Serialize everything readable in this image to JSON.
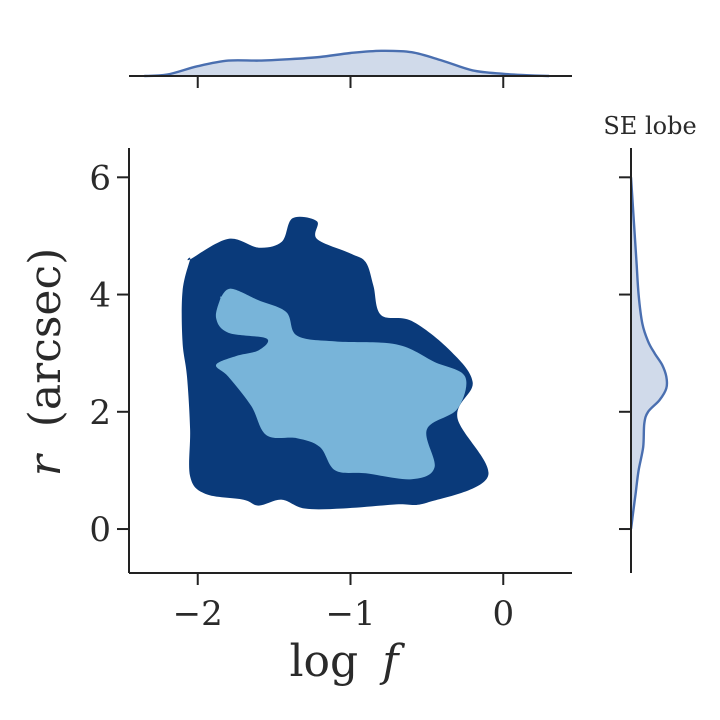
{
  "chart_data": {
    "type": "contour",
    "annotation": "SE lobe",
    "xlabel_main": "log",
    "xlabel_var": "f",
    "ylabel_var": "r",
    "ylabel_unit": "(arcsec)",
    "xlim": [
      -2.45,
      0.45
    ],
    "ylim": [
      -0.75,
      6.5
    ],
    "xticks": [
      -2,
      -1,
      0
    ],
    "xtick_labels": [
      "−2",
      "−1",
      "0"
    ],
    "yticks": [
      0,
      2,
      4,
      6
    ],
    "ytick_labels": [
      "0",
      "2",
      "4",
      "6"
    ],
    "grid": false,
    "colors": {
      "outer_contour": "#0a3a7a",
      "inner_contour": "#78b4d9",
      "marginal_line": "#4a6fb0",
      "marginal_fill": "#d0daea",
      "axis": "#222222"
    },
    "contour_levels": [
      {
        "name": "outer",
        "points": [
          [
            -2.05,
            4.6
          ],
          [
            -1.8,
            4.95
          ],
          [
            -1.6,
            4.8
          ],
          [
            -1.45,
            4.9
          ],
          [
            -1.38,
            5.3
          ],
          [
            -1.22,
            5.25
          ],
          [
            -1.22,
            4.95
          ],
          [
            -1.0,
            4.7
          ],
          [
            -0.9,
            4.55
          ],
          [
            -0.85,
            4.15
          ],
          [
            -0.8,
            3.65
          ],
          [
            -0.6,
            3.55
          ],
          [
            -0.35,
            3.05
          ],
          [
            -0.2,
            2.5
          ],
          [
            -0.3,
            1.9
          ],
          [
            -0.1,
            0.9
          ],
          [
            -0.5,
            0.45
          ],
          [
            -0.7,
            0.42
          ],
          [
            -1.05,
            0.35
          ],
          [
            -1.3,
            0.35
          ],
          [
            -1.45,
            0.5
          ],
          [
            -1.6,
            0.4
          ],
          [
            -1.7,
            0.5
          ],
          [
            -1.95,
            0.6
          ],
          [
            -2.05,
            0.9
          ],
          [
            -2.05,
            1.7
          ],
          [
            -2.07,
            2.6
          ],
          [
            -2.1,
            3.2
          ],
          [
            -2.1,
            4.05
          ],
          [
            -2.05,
            4.6
          ]
        ]
      },
      {
        "name": "inner",
        "points": [
          [
            -1.85,
            3.95
          ],
          [
            -1.78,
            4.1
          ],
          [
            -1.6,
            3.9
          ],
          [
            -1.42,
            3.7
          ],
          [
            -1.35,
            3.3
          ],
          [
            -1.1,
            3.2
          ],
          [
            -0.7,
            3.15
          ],
          [
            -0.45,
            2.85
          ],
          [
            -0.25,
            2.6
          ],
          [
            -0.3,
            2.05
          ],
          [
            -0.5,
            1.7
          ],
          [
            -0.45,
            1.05
          ],
          [
            -0.6,
            0.85
          ],
          [
            -0.9,
            0.95
          ],
          [
            -1.1,
            1.0
          ],
          [
            -1.2,
            1.4
          ],
          [
            -1.35,
            1.55
          ],
          [
            -1.55,
            1.6
          ],
          [
            -1.65,
            2.1
          ],
          [
            -1.8,
            2.6
          ],
          [
            -1.88,
            2.8
          ],
          [
            -1.75,
            2.95
          ],
          [
            -1.6,
            3.05
          ],
          [
            -1.55,
            3.25
          ],
          [
            -1.8,
            3.35
          ],
          [
            -1.88,
            3.6
          ],
          [
            -1.85,
            3.95
          ]
        ]
      }
    ],
    "marginal_x": {
      "x": [
        -2.35,
        -2.2,
        -2.0,
        -1.8,
        -1.6,
        -1.4,
        -1.2,
        -1.0,
        -0.8,
        -0.6,
        -0.4,
        -0.2,
        0.0,
        0.15,
        0.3
      ],
      "density": [
        0.0,
        0.05,
        0.35,
        0.55,
        0.55,
        0.6,
        0.68,
        0.82,
        0.9,
        0.85,
        0.55,
        0.2,
        0.08,
        0.03,
        0.0
      ]
    },
    "marginal_y": {
      "y": [
        6.0,
        5.5,
        5.0,
        4.5,
        4.0,
        3.5,
        3.2,
        3.0,
        2.8,
        2.6,
        2.4,
        2.2,
        2.0,
        1.8,
        1.4,
        1.0,
        0.6,
        0.2,
        0.0
      ],
      "density": [
        0.0,
        0.05,
        0.1,
        0.15,
        0.2,
        0.3,
        0.45,
        0.62,
        0.82,
        0.93,
        0.93,
        0.75,
        0.45,
        0.35,
        0.32,
        0.2,
        0.12,
        0.04,
        0.0
      ]
    }
  }
}
